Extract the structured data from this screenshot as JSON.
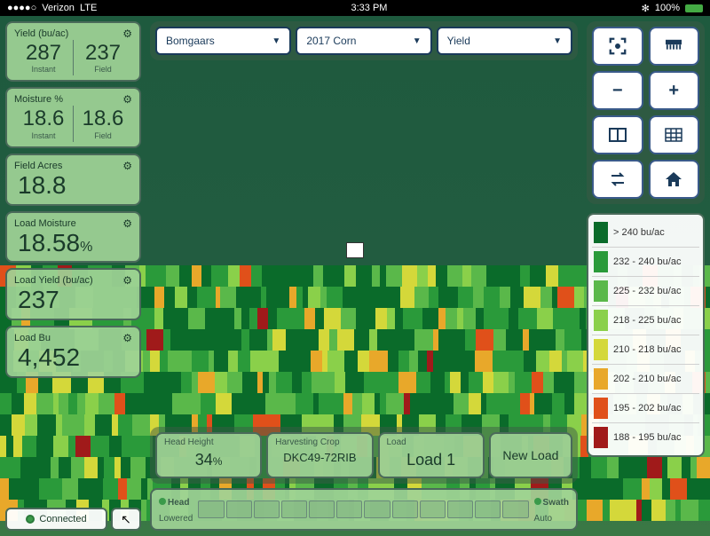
{
  "status": {
    "carrier": "Verizon",
    "network": "LTE",
    "time": "3:33 PM",
    "battery": "100%",
    "bt": "✻"
  },
  "dropdowns": {
    "field": "Bomgaars",
    "crop": "2017 Corn",
    "metric": "Yield"
  },
  "metrics": {
    "yield": {
      "title": "Yield (bu/ac)",
      "instant": "287",
      "instant_sub": "Instant",
      "field": "237",
      "field_sub": "Field"
    },
    "moisture": {
      "title": "Moisture %",
      "instant": "18.6",
      "instant_sub": "Instant",
      "field": "18.6",
      "field_sub": "Field"
    },
    "acres": {
      "title": "Field Acres",
      "value": "18.8"
    },
    "load_moisture": {
      "title": "Load Moisture",
      "value": "18.58",
      "unit": "%"
    },
    "load_yield": {
      "title": "Load Yield (bu/ac)",
      "value": "237"
    },
    "load_bu": {
      "title": "Load Bu",
      "value": "4,452"
    }
  },
  "connection": {
    "label": "Connected"
  },
  "harvest": {
    "head_height": {
      "label": "Head Height",
      "value": "34",
      "unit": "%"
    },
    "crop": {
      "label": "Harvesting Crop",
      "value": "DKC49-72RIB"
    },
    "load": {
      "label": "Load",
      "value": "Load 1"
    },
    "new_load": "New Load"
  },
  "swath": {
    "head_label": "Head",
    "head_sub": "Lowered",
    "swath_label": "Swath",
    "swath_sub": "Auto",
    "cells": 12
  },
  "legend": [
    {
      "color": "#0a6b2a",
      "label": "> 240 bu/ac"
    },
    {
      "color": "#2a9a3a",
      "label": "232 - 240 bu/ac"
    },
    {
      "color": "#5ab84a",
      "label": "225 - 232 bu/ac"
    },
    {
      "color": "#8ad04a",
      "label": "218 - 225 bu/ac"
    },
    {
      "color": "#d4d83a",
      "label": "210 - 218 bu/ac"
    },
    {
      "color": "#e8a82a",
      "label": "202 - 210 bu/ac"
    },
    {
      "color": "#e0501a",
      "label": "195 - 202 bu/ac"
    },
    {
      "color": "#a01a1a",
      "label": "188 - 195 bu/ac"
    }
  ],
  "stripe_colors": [
    "#0a6b2a",
    "#2a9a3a",
    "#5ab84a",
    "#8ad04a",
    "#d4d83a",
    "#e8a82a",
    "#e0501a",
    "#a01a1a"
  ],
  "stripe_rows": 12,
  "stripe_segments": 60
}
